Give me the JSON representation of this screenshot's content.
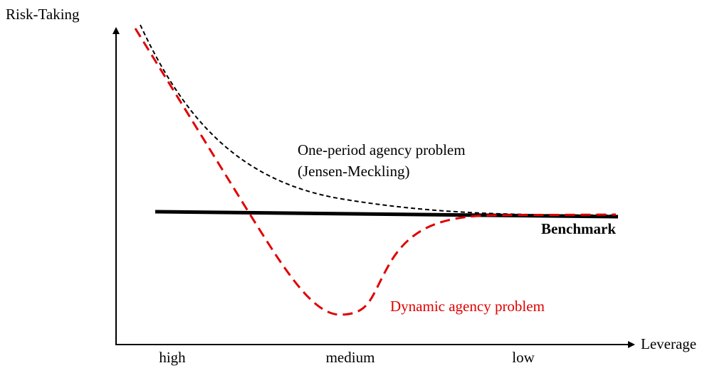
{
  "axes": {
    "y_label": "Risk-Taking",
    "x_label": "Leverage",
    "x_categories": [
      "high",
      "medium",
      "low"
    ]
  },
  "curves": {
    "one_period": {
      "label_line1": "One-period agency problem",
      "label_line2": "(Jensen-Meckling)"
    },
    "benchmark": {
      "label": "Benchmark"
    },
    "dynamic": {
      "label": "Dynamic agency problem"
    }
  }
}
